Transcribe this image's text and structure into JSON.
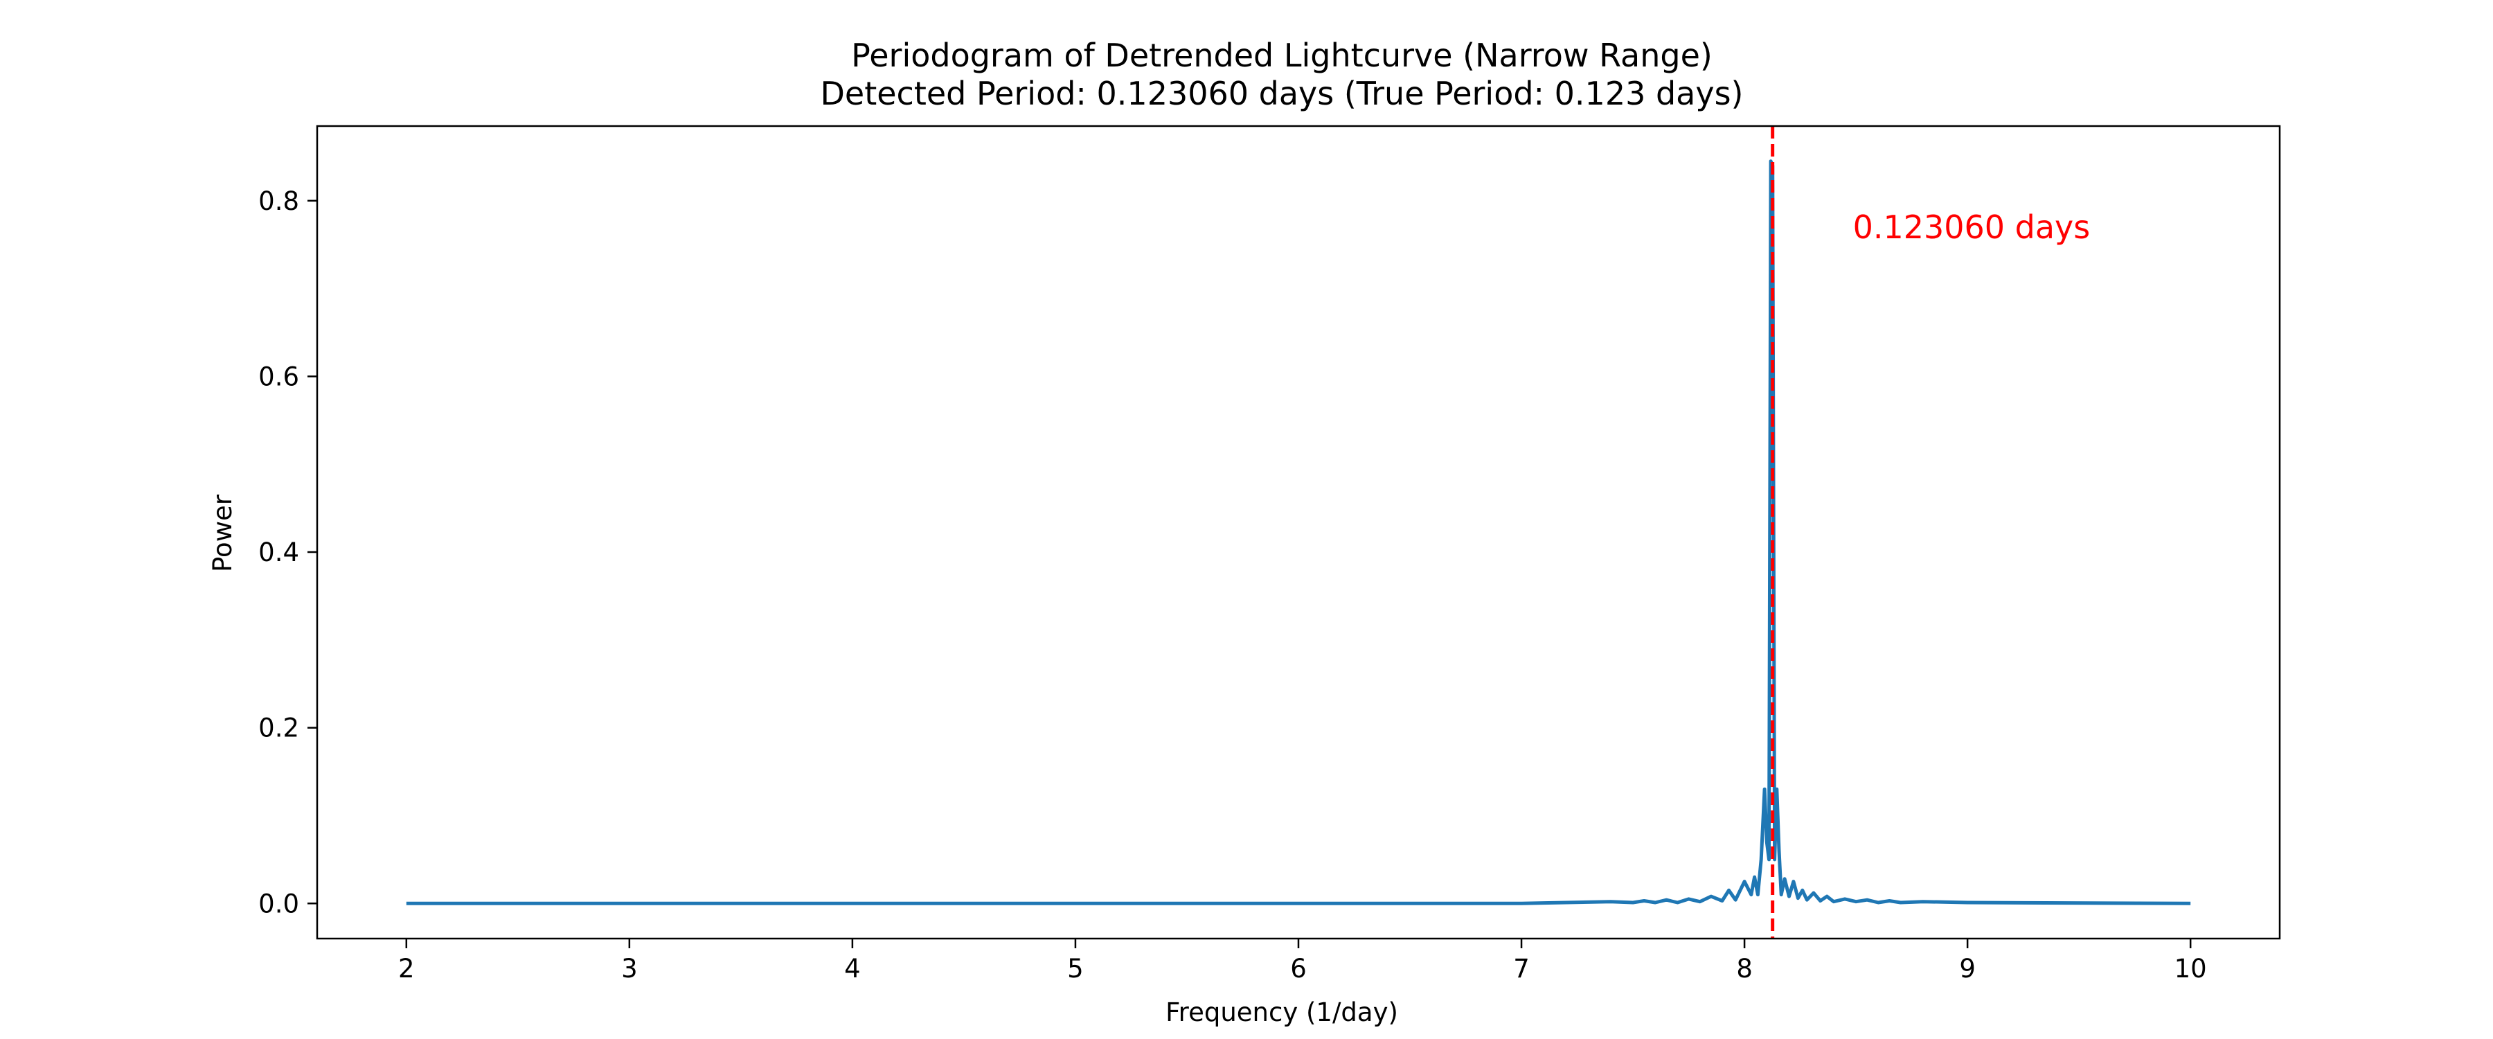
{
  "chart_data": {
    "type": "line",
    "title": "Periodogram of Detrended Lightcurve (Narrow Range)",
    "subtitle": "Detected Period: 0.123060 days (True Period: 0.123 days)",
    "xlabel": "Frequency (1/day)",
    "ylabel": "Power",
    "xlim": [
      1.6,
      10.4
    ],
    "ylim": [
      -0.04,
      0.885
    ],
    "xticks": [
      2,
      3,
      4,
      5,
      6,
      7,
      8,
      9,
      10
    ],
    "xtick_labels": [
      "2",
      "3",
      "4",
      "5",
      "6",
      "7",
      "8",
      "9",
      "10"
    ],
    "yticks": [
      0.0,
      0.2,
      0.4,
      0.6,
      0.8
    ],
    "ytick_labels": [
      "0.0",
      "0.2",
      "0.4",
      "0.6",
      "0.8"
    ],
    "grid": false,
    "series": [
      {
        "color": "#1f77b4",
        "x": [
          2.0,
          7.0,
          7.4,
          7.5,
          7.55,
          7.6,
          7.65,
          7.7,
          7.75,
          7.8,
          7.85,
          7.9,
          7.93,
          7.96,
          8.0,
          8.03,
          8.045,
          8.06,
          8.075,
          8.09,
          8.1,
          8.11,
          8.118,
          8.126,
          8.135,
          8.145,
          8.155,
          8.165,
          8.18,
          8.2,
          8.22,
          8.24,
          8.26,
          8.28,
          8.31,
          8.34,
          8.37,
          8.4,
          8.45,
          8.5,
          8.55,
          8.6,
          8.65,
          8.7,
          8.8,
          9.0,
          10.0
        ],
        "y": [
          0.0,
          0.0,
          0.002,
          0.001,
          0.003,
          0.001,
          0.004,
          0.001,
          0.005,
          0.002,
          0.008,
          0.003,
          0.015,
          0.004,
          0.025,
          0.01,
          0.03,
          0.01,
          0.05,
          0.13,
          0.07,
          0.05,
          0.845,
          0.84,
          0.05,
          0.13,
          0.06,
          0.01,
          0.028,
          0.008,
          0.025,
          0.006,
          0.015,
          0.004,
          0.012,
          0.003,
          0.008,
          0.002,
          0.005,
          0.002,
          0.004,
          0.001,
          0.003,
          0.001,
          0.002,
          0.001,
          0.0
        ]
      }
    ],
    "vline": {
      "x": 8.126,
      "color": "#ff0000",
      "style": "dashed"
    },
    "annotation": {
      "text": "0.123060 days",
      "x": 9.55,
      "y": 0.77,
      "color": "#ff0000"
    }
  }
}
